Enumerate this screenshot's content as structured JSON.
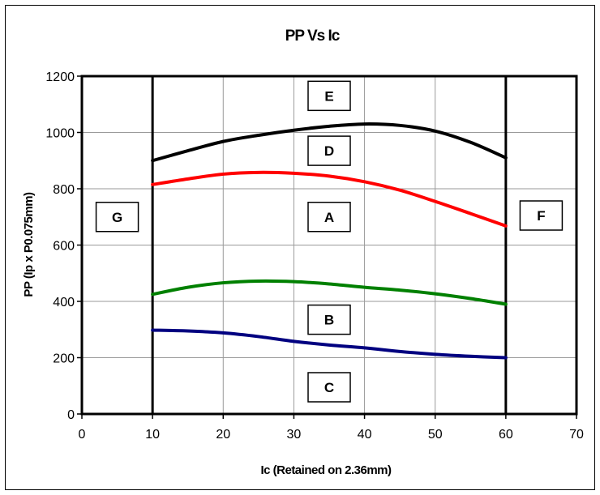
{
  "chart_data": {
    "type": "line",
    "title": "PP Vs Ic",
    "xlabel": "Ic (Retained on 2.36mm)",
    "ylabel": "PP (Ip x P0.075mm)",
    "xlim": [
      0,
      70
    ],
    "ylim": [
      0,
      1200
    ],
    "xticks": [
      0,
      10,
      20,
      30,
      40,
      50,
      60,
      70
    ],
    "yticks": [
      0,
      200,
      400,
      600,
      800,
      1000,
      1200
    ],
    "grid": true,
    "legend": "none",
    "series": [
      {
        "color": "#000000",
        "x": [
          10,
          15,
          20,
          25,
          30,
          35,
          40,
          45,
          50,
          55,
          60
        ],
        "y": [
          900,
          935,
          968,
          990,
          1008,
          1022,
          1030,
          1025,
          1005,
          965,
          910
        ]
      },
      {
        "color": "#ff0000",
        "x": [
          10,
          15,
          20,
          25,
          30,
          35,
          40,
          45,
          50,
          55,
          60
        ],
        "y": [
          815,
          835,
          852,
          858,
          855,
          845,
          825,
          795,
          755,
          712,
          668
        ]
      },
      {
        "color": "#008000",
        "x": [
          10,
          15,
          20,
          25,
          30,
          35,
          40,
          45,
          50,
          55,
          60
        ],
        "y": [
          425,
          450,
          466,
          472,
          470,
          462,
          450,
          440,
          427,
          410,
          390
        ]
      },
      {
        "color": "#000080",
        "x": [
          10,
          15,
          20,
          25,
          30,
          35,
          40,
          45,
          50,
          55,
          60
        ],
        "y": [
          298,
          295,
          288,
          275,
          258,
          245,
          235,
          222,
          212,
          205,
          200
        ]
      }
    ],
    "boundaries": [
      {
        "x": 10,
        "color": "#000000"
      },
      {
        "x": 60,
        "color": "#000000"
      }
    ],
    "zone_labels": [
      {
        "text": "E",
        "x": 35,
        "y": 1130
      },
      {
        "text": "D",
        "x": 35,
        "y": 935
      },
      {
        "text": "A",
        "x": 35,
        "y": 700
      },
      {
        "text": "B",
        "x": 35,
        "y": 335
      },
      {
        "text": "C",
        "x": 35,
        "y": 95
      },
      {
        "text": "G",
        "x": 5,
        "y": 700
      },
      {
        "text": "F",
        "x": 65,
        "y": 705
      }
    ]
  }
}
